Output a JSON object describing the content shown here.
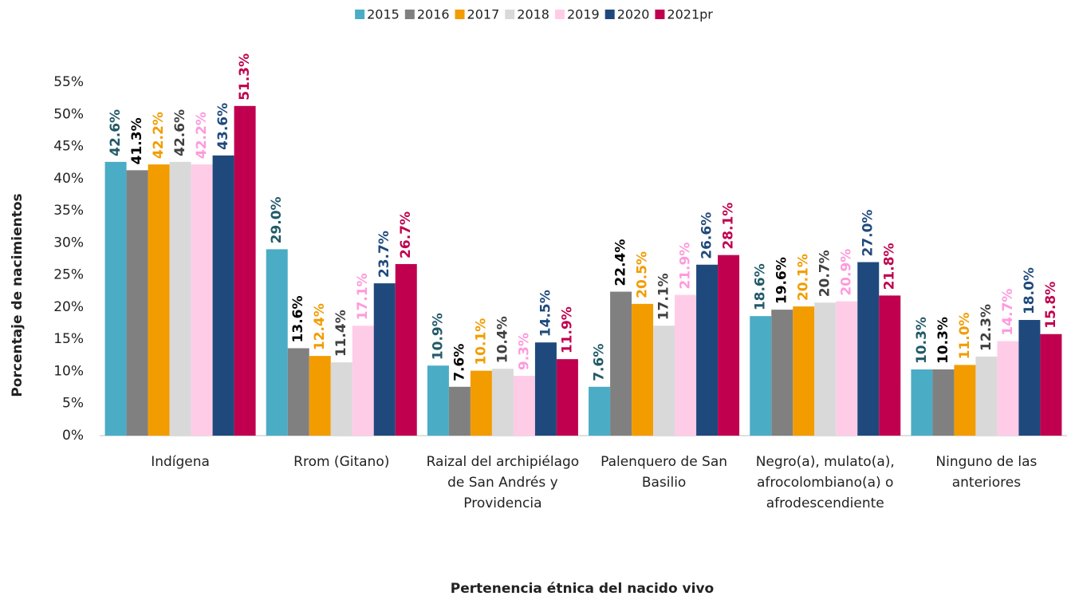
{
  "chart_data": {
    "type": "bar",
    "x_label": "Pertenencia étnica del nacido vivo",
    "y_label": "Porcentaje de nacimientos",
    "categories": [
      "Indígena",
      "Rrom (Gitano)",
      "Raizal del archipiélago de San Andrés y Providencia",
      "Palenquero de San Basilio",
      "Negro(a), mulato(a), afrocolombiano(a) o afrodescendiente",
      "Ninguno de las anteriores"
    ],
    "ylim": [
      0,
      55
    ],
    "yticks": [
      {
        "value": 0,
        "label": "0%"
      },
      {
        "value": 5,
        "label": "5%"
      },
      {
        "value": 10,
        "label": "10%"
      },
      {
        "value": 15,
        "label": "15%"
      },
      {
        "value": 20,
        "label": "20%"
      },
      {
        "value": 25,
        "label": "25%"
      },
      {
        "value": 30,
        "label": "30%"
      },
      {
        "value": 35,
        "label": "35%"
      },
      {
        "value": 40,
        "label": "40%"
      },
      {
        "value": 45,
        "label": "45%"
      },
      {
        "value": 50,
        "label": "50%"
      },
      {
        "value": 55,
        "label": "55%"
      }
    ],
    "legend": "top",
    "series": [
      {
        "name": "2015",
        "color": "#4bacc6",
        "label_color": "#215968",
        "values": [
          42.6,
          29.0,
          10.9,
          7.6,
          18.6,
          10.3
        ],
        "value_labels": [
          "42.6%",
          "29.0%",
          "10.9%",
          "7.6%",
          "18.6%",
          "10.3%"
        ]
      },
      {
        "name": "2016",
        "color": "#808080",
        "label_color": "#000000",
        "values": [
          41.3,
          13.6,
          7.6,
          22.4,
          19.6,
          10.3
        ],
        "value_labels": [
          "41.3%",
          "13.6%",
          "7.6%",
          "22.4%",
          "19.6%",
          "10.3%"
        ]
      },
      {
        "name": "2017",
        "color": "#f29c00",
        "label_color": "#f29c00",
        "values": [
          42.2,
          12.4,
          10.1,
          20.5,
          20.1,
          11.0
        ],
        "value_labels": [
          "42.2%",
          "12.4%",
          "10.1%",
          "20.5%",
          "20.1%",
          "11.0%"
        ]
      },
      {
        "name": "2018",
        "color": "#d9d9d9",
        "label_color": "#404040",
        "values": [
          42.6,
          11.4,
          10.4,
          17.1,
          20.7,
          12.3
        ],
        "value_labels": [
          "42.6%",
          "11.4%",
          "10.4%",
          "17.1%",
          "20.7%",
          "12.3%"
        ]
      },
      {
        "name": "2019",
        "color": "#ffcce8",
        "label_color": "#ff99dd",
        "values": [
          42.2,
          17.1,
          9.3,
          21.9,
          20.9,
          14.7
        ],
        "value_labels": [
          "42.2%",
          "17.1%",
          "9.3%",
          "21.9%",
          "20.9%",
          "14.7%"
        ]
      },
      {
        "name": "2020",
        "color": "#1f497d",
        "label_color": "#1f497d",
        "values": [
          43.6,
          23.7,
          14.5,
          26.6,
          27.0,
          18.0
        ],
        "value_labels": [
          "43.6%",
          "23.7%",
          "14.5%",
          "26.6%",
          "27.0%",
          "18.0%"
        ]
      },
      {
        "name": "2021pr",
        "color": "#c0004e",
        "label_color": "#c0004e",
        "values": [
          51.3,
          26.7,
          11.9,
          28.1,
          21.8,
          15.8
        ],
        "value_labels": [
          "51.3%",
          "26.7%",
          "11.9%",
          "28.1%",
          "21.8%",
          "15.8%"
        ]
      }
    ]
  }
}
